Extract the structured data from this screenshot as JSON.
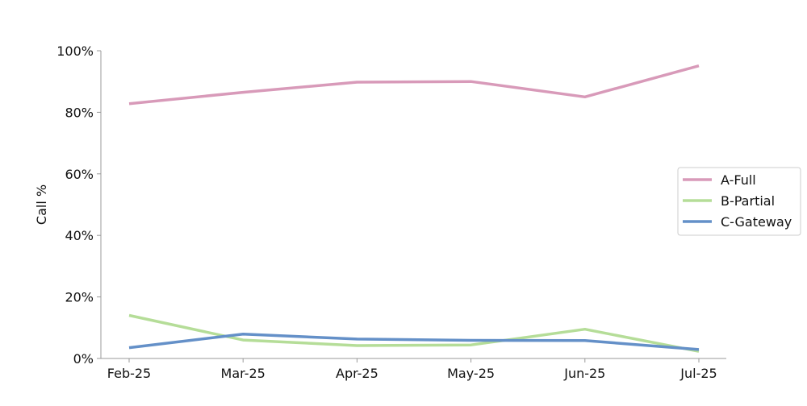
{
  "chart_data": {
    "type": "line",
    "title": "",
    "xlabel": "",
    "ylabel": "Call %",
    "categories": [
      "Feb-25",
      "Mar-25",
      "Apr-25",
      "May-25",
      "Jun-25",
      "Jul-25"
    ],
    "ylim": [
      0,
      100
    ],
    "yticks": [
      0,
      20,
      40,
      60,
      80,
      100
    ],
    "ytick_labels": [
      "0%",
      "20%",
      "40%",
      "60%",
      "80%",
      "100%"
    ],
    "grid": false,
    "legend_position": "right",
    "series": [
      {
        "name": "A-Full",
        "color": "#d89ab9",
        "values": [
          82.8,
          86.5,
          89.8,
          90.0,
          85.0,
          95.1
        ]
      },
      {
        "name": "B-Partial",
        "color": "#b5dd98",
        "values": [
          14.0,
          6.0,
          4.2,
          4.4,
          9.5,
          2.3
        ]
      },
      {
        "name": "C-Gateway",
        "color": "#6490c8",
        "values": [
          3.5,
          7.9,
          6.3,
          5.9,
          5.8,
          2.9
        ]
      }
    ]
  }
}
